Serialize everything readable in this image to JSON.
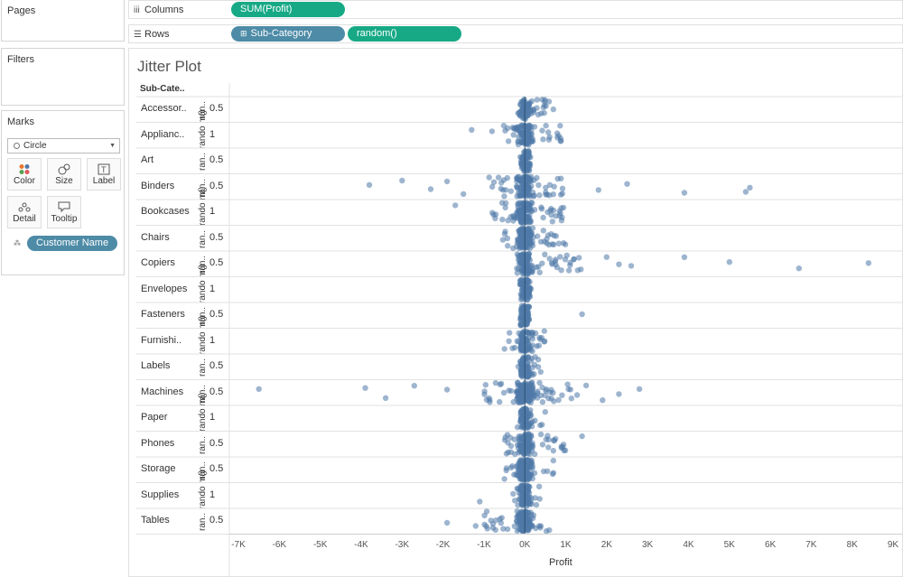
{
  "panels": {
    "pages": "Pages",
    "filters": "Filters",
    "marks": "Marks",
    "mark_type": "Circle",
    "mark_buttons": [
      "Color",
      "Size",
      "Label",
      "Detail",
      "Tooltip"
    ],
    "detail_pill": "Customer Name"
  },
  "shelves": {
    "columns_label": "Columns",
    "columns_pills": [
      "SUM(Profit)"
    ],
    "rows_label": "Rows",
    "rows_pills": [
      "Sub-Category",
      "random()"
    ]
  },
  "sheet": {
    "title": "Jitter Plot",
    "row_header": "Sub-Cate..",
    "rows": [
      {
        "label": "Accessor..",
        "rand_label": "ran..",
        "tick": "0.5"
      },
      {
        "label": "Applianc..",
        "rand_label": "rando m()",
        "tick": "1"
      },
      {
        "label": "Art",
        "rand_label": "ran..",
        "tick": "0.5"
      },
      {
        "label": "Binders",
        "rand_label": "ran..",
        "tick": "0.5"
      },
      {
        "label": "Bookcases",
        "rand_label": "rando m()",
        "tick": "1"
      },
      {
        "label": "Chairs",
        "rand_label": "ran..",
        "tick": "0.5"
      },
      {
        "label": "Copiers",
        "rand_label": "ran..",
        "tick": "0.5"
      },
      {
        "label": "Envelopes",
        "rand_label": "rando m()",
        "tick": "1"
      },
      {
        "label": "Fasteners",
        "rand_label": "ran..",
        "tick": "0.5"
      },
      {
        "label": "Furnishi..",
        "rand_label": "rando m()",
        "tick": "1"
      },
      {
        "label": "Labels",
        "rand_label": "ran..",
        "tick": "0.5"
      },
      {
        "label": "Machines",
        "rand_label": "ran..",
        "tick": "0.5"
      },
      {
        "label": "Paper",
        "rand_label": "rando m()",
        "tick": "1"
      },
      {
        "label": "Phones",
        "rand_label": "ran..",
        "tick": "0.5"
      },
      {
        "label": "Storage",
        "rand_label": "ran..",
        "tick": "0.5"
      },
      {
        "label": "Supplies",
        "rand_label": "rando m()",
        "tick": "1"
      },
      {
        "label": "Tables",
        "rand_label": "ran..",
        "tick": "0.5"
      }
    ]
  },
  "chart_data": {
    "type": "scatter",
    "title": "Jitter Plot",
    "xlabel": "Profit",
    "ylabel": "Sub-Category",
    "xlim": [
      -7000,
      9000
    ],
    "x_ticks": [
      "-7K",
      "-6K",
      "-5K",
      "-4K",
      "-3K",
      "-2K",
      "-1K",
      "0K",
      "1K",
      "2K",
      "3K",
      "4K",
      "5K",
      "6K",
      "7K",
      "8K",
      "9K"
    ],
    "categories": [
      "Accessories",
      "Appliances",
      "Art",
      "Binders",
      "Bookcases",
      "Chairs",
      "Copiers",
      "Envelopes",
      "Fasteners",
      "Furnishings",
      "Labels",
      "Machines",
      "Paper",
      "Phones",
      "Storage",
      "Supplies",
      "Tables"
    ],
    "dense_range": [
      [
        0,
        700
      ],
      [
        -600,
        900
      ],
      [
        0,
        150
      ],
      [
        -900,
        1000
      ],
      [
        -800,
        1000
      ],
      [
        -600,
        1000
      ],
      [
        0,
        1400
      ],
      [
        -100,
        200
      ],
      [
        -100,
        100
      ],
      [
        -500,
        500
      ],
      [
        -100,
        400
      ],
      [
        -1000,
        1500
      ],
      [
        -100,
        500
      ],
      [
        -600,
        1000
      ],
      [
        -500,
        800
      ],
      [
        -300,
        400
      ],
      [
        -1000,
        600
      ]
    ],
    "outliers": [
      {
        "category": "Appliances",
        "x": [
          -1300,
          -800
        ]
      },
      {
        "category": "Binders",
        "x": [
          -3800,
          -3000,
          -2300,
          -1900,
          -1500,
          1800,
          2500,
          3900,
          5400,
          5500
        ]
      },
      {
        "category": "Bookcases",
        "x": [
          -1700
        ]
      },
      {
        "category": "Copiers",
        "x": [
          2000,
          2300,
          2600,
          3900,
          5000,
          6700,
          8400
        ]
      },
      {
        "category": "Fasteners",
        "x": [
          1400
        ]
      },
      {
        "category": "Machines",
        "x": [
          -6500,
          -3900,
          -3400,
          -2700,
          -1900,
          1900,
          2300,
          2800
        ]
      },
      {
        "category": "Phones",
        "x": [
          1400
        ]
      },
      {
        "category": "Supplies",
        "x": [
          -1100
        ]
      },
      {
        "category": "Tables",
        "x": [
          -1900,
          -1200
        ]
      }
    ],
    "marker_color": "#4e79a7",
    "marker": "circle",
    "grid": true
  },
  "colors": {
    "pill_green": "#17a986",
    "pill_blue": "#4d8ba7",
    "mark": "#4e79a7"
  }
}
